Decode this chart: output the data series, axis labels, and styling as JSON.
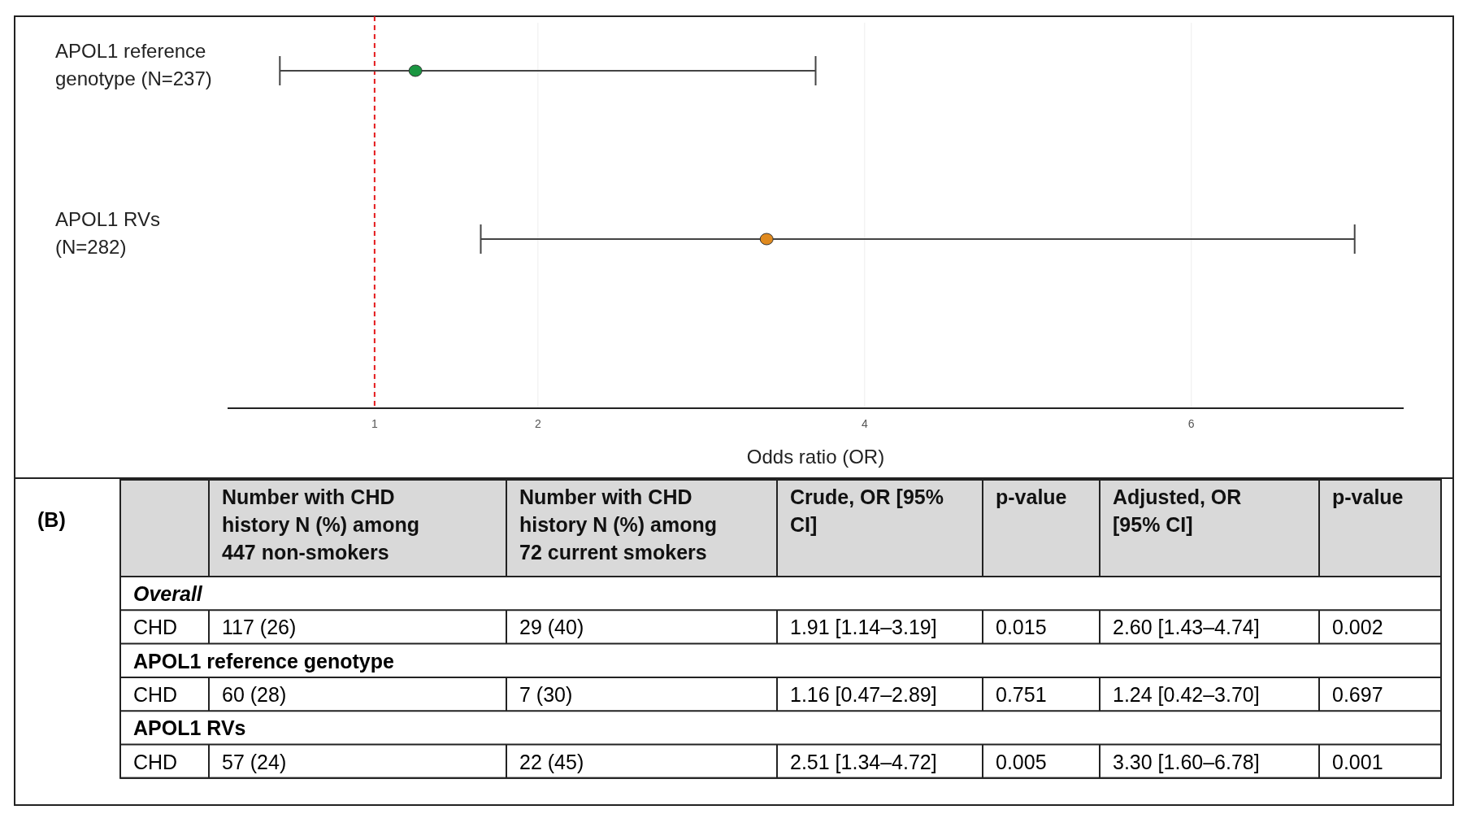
{
  "chart_data": [
    {
      "type": "scatter",
      "orientation": "horizontal",
      "xlabel": "Odds ratio (OR)",
      "categories": [
        "APOL1 reference genotype (N=237)",
        "APOL1 RVs (N=282)"
      ],
      "values": [
        1.25,
        3.4
      ],
      "errors": [
        [
          0.42,
          3.7
        ],
        [
          1.65,
          7.0
        ]
      ],
      "colors": [
        "#1a9641",
        "#e08a1e"
      ],
      "xlim": [
        0.1,
        7.3
      ],
      "xticks": [
        1,
        2,
        4,
        6
      ],
      "grid": "x",
      "marker": "circle",
      "ref_lines": [
        {
          "axis": "x",
          "value": 1,
          "color": "#e41a1c",
          "line_style": "dashed"
        }
      ]
    },
    {
      "type": "other",
      "title": "(B)",
      "categories": [
        null,
        "Number with CHD history N (%) among 447 non-smokers",
        "Number with CHD history N (%) among 72 current smokers",
        "Crude, OR [95% CI]",
        "p-value",
        "Adjusted, OR [95% CI]",
        "p-value"
      ],
      "cell_labels": [
        [
          "Overall"
        ],
        [
          "CHD",
          "117 (26)",
          "29 (40)",
          "1.91 [1.14–3.19]",
          "0.015",
          "2.60 [1.43–4.74]",
          "0.002"
        ],
        [
          "APOL1 reference genotype"
        ],
        [
          "CHD",
          "60 (28)",
          "7 (30)",
          "1.16 [0.47–2.89]",
          "0.751",
          "1.24 [0.42–3.70]",
          "0.697"
        ],
        [
          "APOL1 RVs"
        ],
        [
          "CHD",
          "57 (24)",
          "22 (45)",
          "2.51 [1.34–4.72]",
          "0.005",
          "3.30 [1.60–6.78]",
          "0.001"
        ]
      ]
    }
  ]
}
